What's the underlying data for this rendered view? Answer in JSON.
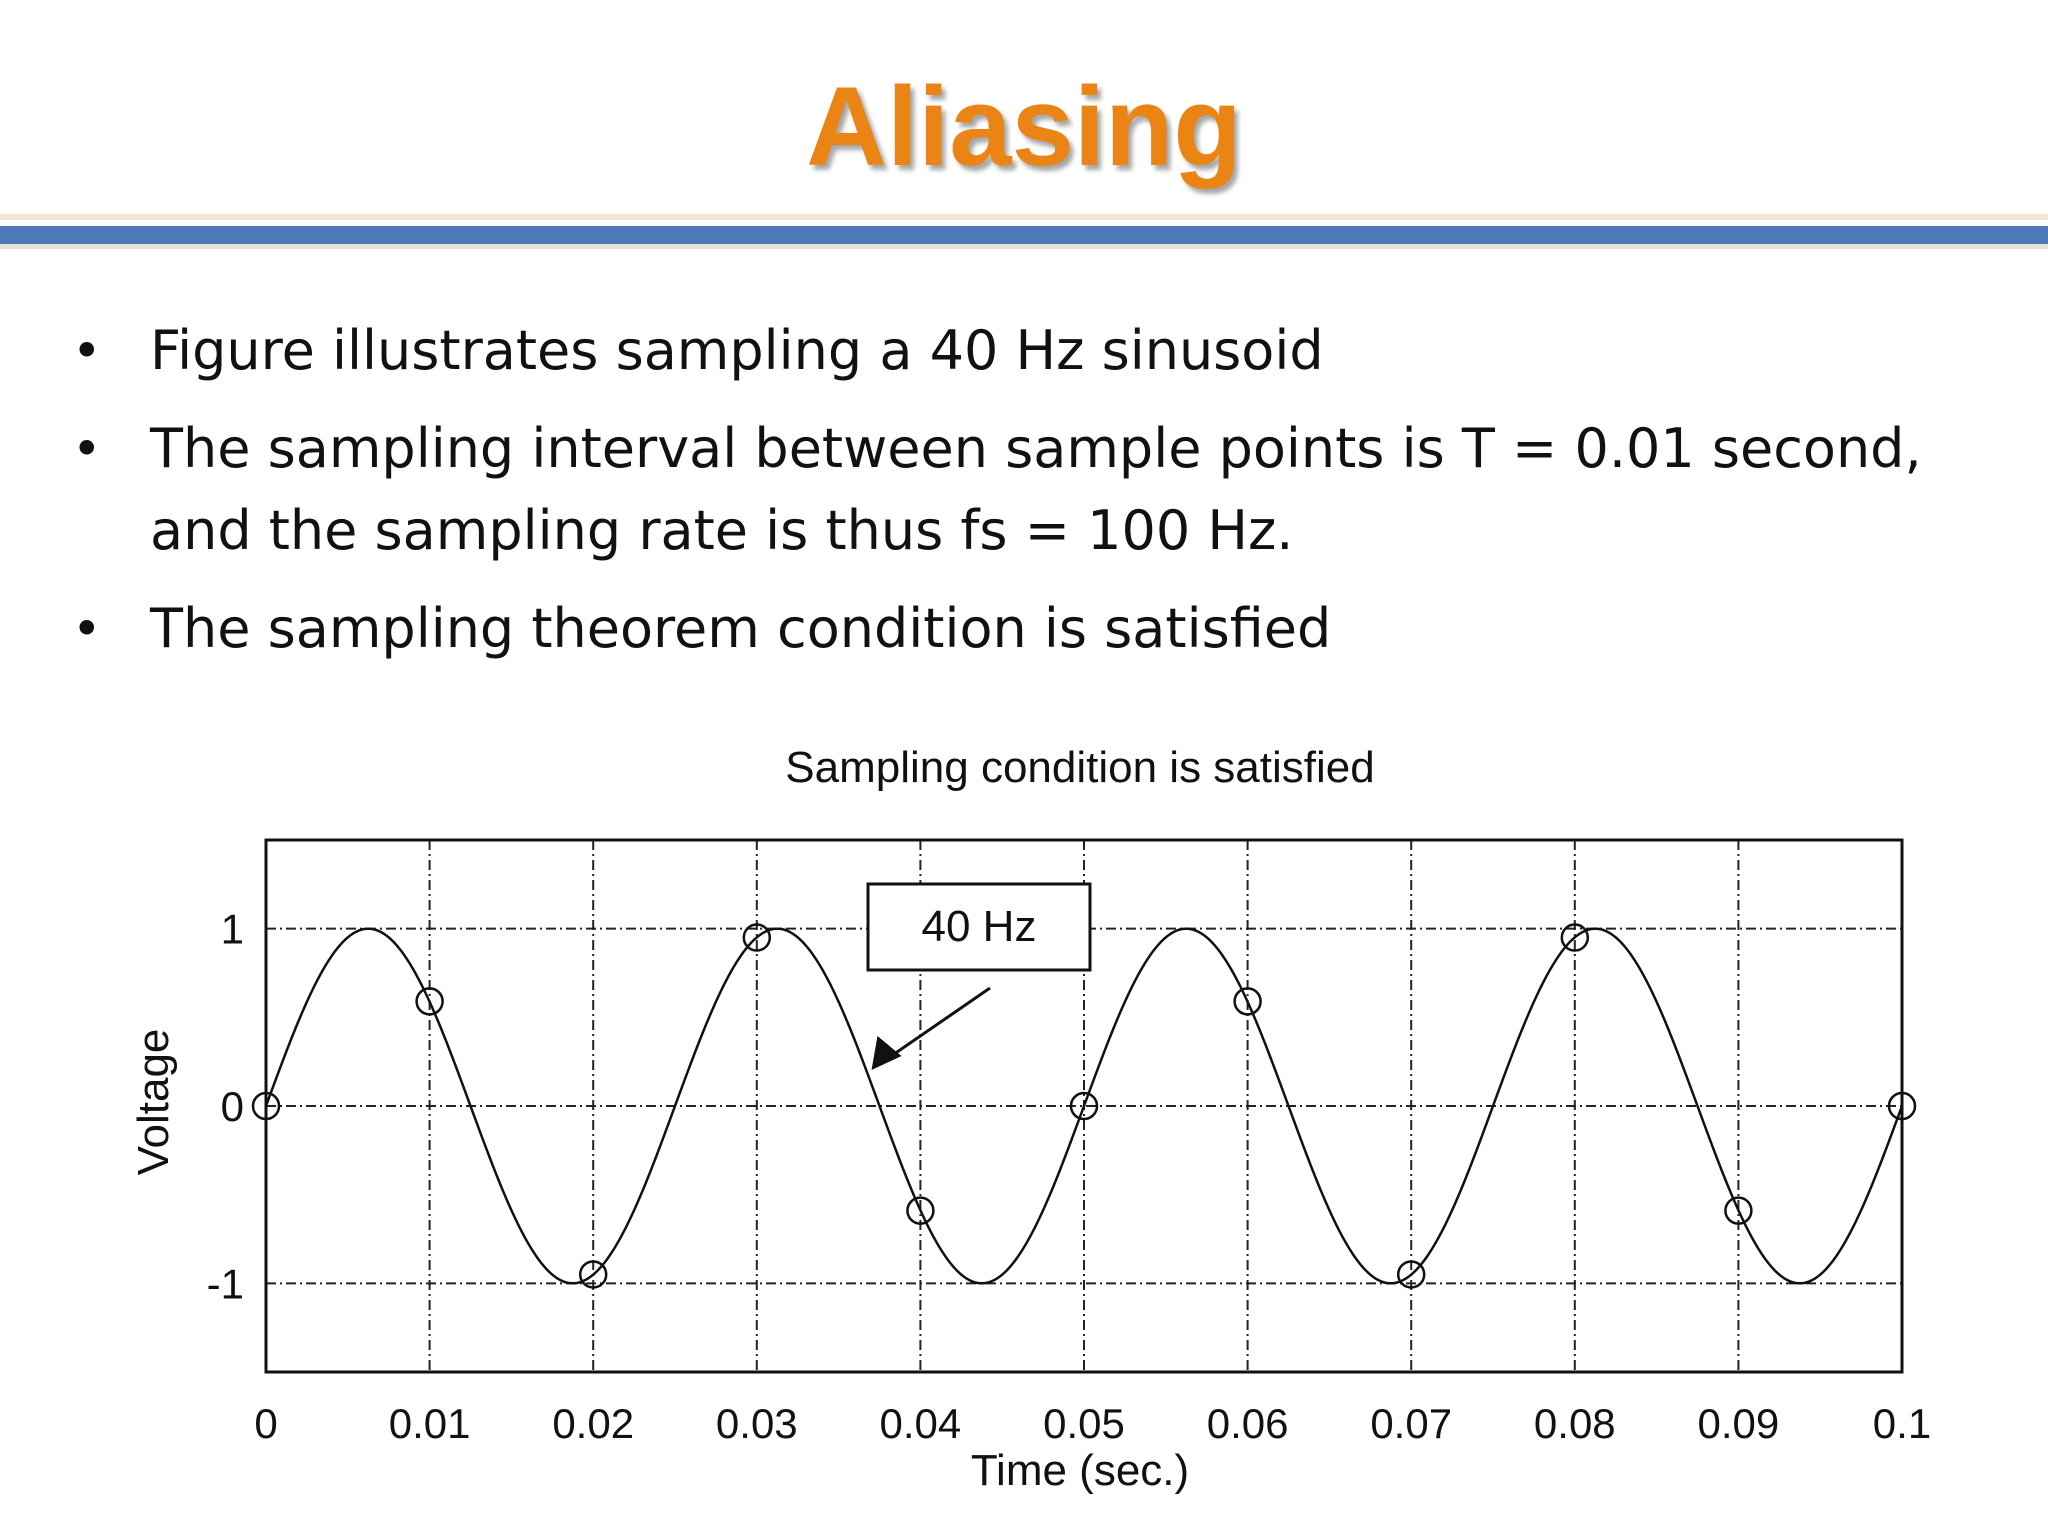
{
  "slide": {
    "title": "Aliasing",
    "bullets": [
      "Figure illustrates sampling a 40 Hz sinusoid",
      "The sampling interval between sample points is T = 0.01 second, and the sampling rate is thus fs = 100 Hz.",
      "The sampling theorem condition is satisfied"
    ],
    "bullet_marker": "•"
  },
  "colors": {
    "title": "#ea8414",
    "rule": "#4f79b8",
    "text": "#111111"
  },
  "chart_data": {
    "type": "line",
    "title": "Sampling condition is satisfied",
    "xlabel": "Time (sec.)",
    "ylabel": "Voltage",
    "xlim": [
      0,
      0.1
    ],
    "ylim": [
      -1.5,
      1.5
    ],
    "grid": true,
    "x_ticks": [
      0,
      0.01,
      0.02,
      0.03,
      0.04,
      0.05,
      0.06,
      0.07,
      0.08,
      0.09,
      0.1
    ],
    "x_tick_labels": [
      "0",
      "0.01",
      "0.02",
      "0.03",
      "0.04",
      "0.05",
      "0.06",
      "0.07",
      "0.08",
      "0.09",
      "0.1"
    ],
    "y_ticks": [
      -1,
      0,
      1
    ],
    "y_tick_labels": [
      "-1",
      "0",
      "1"
    ],
    "series": [
      {
        "kind": "curve",
        "frequency_hz": 40,
        "amplitude": 1,
        "function": "sin(2*pi*40*t)",
        "x": [
          0,
          0.00625,
          0.0125,
          0.01875,
          0.025,
          0.03125,
          0.0375,
          0.04375,
          0.05,
          0.05625,
          0.0625,
          0.06875,
          0.075,
          0.08125,
          0.0875,
          0.09375,
          0.1
        ],
        "values": [
          0,
          1,
          0,
          -1,
          0,
          1,
          0,
          -1,
          0,
          1,
          0,
          -1,
          0,
          1,
          0,
          -1,
          0
        ],
        "marker": "none"
      },
      {
        "kind": "samples",
        "marker": "circle",
        "x": [
          0,
          0.01,
          0.02,
          0.03,
          0.04,
          0.05,
          0.06,
          0.07,
          0.08,
          0.09,
          0.1
        ],
        "values": [
          0,
          0.59,
          -0.95,
          0.95,
          -0.59,
          0,
          0.59,
          -0.95,
          0.95,
          -0.59,
          0
        ]
      }
    ],
    "annotations": [
      {
        "text": "40 Hz",
        "boxed": true,
        "arrow_to_x": 0.0375,
        "arrow_to_y": 0
      }
    ]
  }
}
